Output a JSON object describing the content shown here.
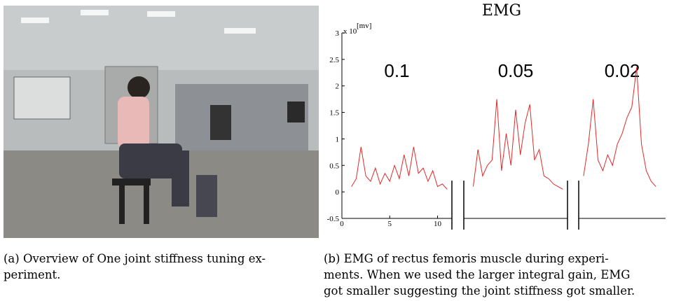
{
  "captions": {
    "a": [
      "(a) Overview of One joint stiffness tuning ex-",
      "periment."
    ],
    "b": [
      "(b) EMG of rectus femoris muscle during experi-",
      "ments. When we used the larger integral gain, EMG",
      "got smaller suggesting the joint stiffness got smaller."
    ]
  },
  "chart_data": {
    "type": "line",
    "title": "EMG",
    "y_unit": "x 10",
    "y_unit_sup": "[mv]",
    "color": "#e02a2a",
    "ylim": [
      -0.5,
      3
    ],
    "yticks": [
      -0.5,
      0,
      0.5,
      1,
      1.5,
      2,
      2.5,
      3
    ],
    "panels": [
      {
        "label": "0.1",
        "xlim": [
          0,
          11.5
        ],
        "xticks": [
          0,
          5,
          10
        ],
        "x": [
          1,
          1.5,
          2,
          2.5,
          3,
          3.5,
          4,
          4.5,
          5,
          5.5,
          6,
          6.5,
          7,
          7.5,
          8,
          8.5,
          9,
          9.5,
          10,
          10.5,
          11
        ],
        "values": [
          0.1,
          0.25,
          0.85,
          0.3,
          0.2,
          0.45,
          0.15,
          0.35,
          0.2,
          0.5,
          0.25,
          0.7,
          0.3,
          0.85,
          0.35,
          0.45,
          0.2,
          0.4,
          0.1,
          0.15,
          0.05
        ]
      },
      {
        "label": "0.05",
        "xlim": [
          0,
          11
        ],
        "xticks": [],
        "x": [
          1,
          1.5,
          2,
          2.5,
          3,
          3.5,
          4,
          4.5,
          5,
          5.5,
          6,
          6.5,
          7,
          7.5,
          8,
          8.5,
          9,
          9.5,
          10,
          10.5
        ],
        "values": [
          0.1,
          0.8,
          0.3,
          0.5,
          0.6,
          1.75,
          0.4,
          1.1,
          0.5,
          1.55,
          0.7,
          1.3,
          1.65,
          0.6,
          0.8,
          0.3,
          0.25,
          0.15,
          0.1,
          0.05
        ]
      },
      {
        "label": "0.02",
        "xlim": [
          0,
          9
        ],
        "xticks": [],
        "x": [
          0.5,
          1,
          1.5,
          2,
          2.5,
          3,
          3.5,
          4,
          4.5,
          5,
          5.5,
          6,
          6.5,
          7,
          7.5,
          8
        ],
        "values": [
          0.3,
          0.9,
          1.75,
          0.6,
          0.4,
          0.7,
          0.5,
          0.9,
          1.1,
          1.4,
          1.6,
          2.35,
          0.9,
          0.4,
          0.2,
          0.1
        ]
      }
    ]
  }
}
